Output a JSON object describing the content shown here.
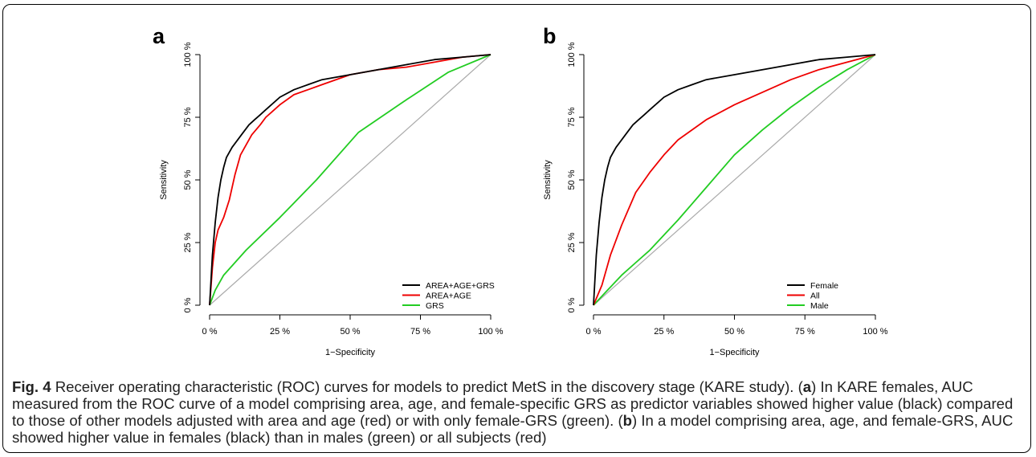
{
  "caption": {
    "figure_label": "Fig. 4",
    "text_1": " Receiver operating characteristic (ROC) curves for models to predict MetS in the discovery stage (KARE study). (",
    "a_ref": "a",
    "text_2": ") In KARE females, AUC measured from the ROC curve of a model comprising area, age, and female-specific GRS as predictor variables showed higher value (black) compared to those of other models adjusted with area and age (red) or with only female-GRS (green). (",
    "b_ref": "b",
    "text_3": ") In a model comprising area, age, and female-GRS, AUC showed higher value in females (black) than in males (green) or all subjects (red)"
  },
  "chart_data": [
    {
      "panel": "a",
      "type": "line",
      "xlabel": "1−Specificity",
      "ylabel": "Sensitivity",
      "xlim": [
        0,
        1
      ],
      "ylim": [
        0,
        1
      ],
      "x_ticks": [
        "0 %",
        "25 %",
        "50 %",
        "75 %",
        "100 %"
      ],
      "y_ticks": [
        "0 %",
        "25 %",
        "50 %",
        "75 %",
        "100 %"
      ],
      "legend_position": "bottom-right",
      "reference_line": {
        "color": "#aaaaaa",
        "from": [
          0,
          0
        ],
        "to": [
          1,
          1
        ]
      },
      "series": [
        {
          "name": "AREA+AGE+GRS",
          "color": "#000000",
          "x": [
            0,
            0.01,
            0.02,
            0.03,
            0.04,
            0.05,
            0.06,
            0.08,
            0.1,
            0.12,
            0.14,
            0.16,
            0.18,
            0.2,
            0.25,
            0.3,
            0.35,
            0.4,
            0.5,
            0.6,
            0.7,
            0.8,
            0.9,
            1.0
          ],
          "y": [
            0,
            0.2,
            0.33,
            0.43,
            0.5,
            0.55,
            0.59,
            0.63,
            0.66,
            0.69,
            0.72,
            0.74,
            0.76,
            0.78,
            0.83,
            0.86,
            0.88,
            0.9,
            0.92,
            0.94,
            0.96,
            0.98,
            0.99,
            1.0
          ]
        },
        {
          "name": "AREA+AGE",
          "color": "#ee0000",
          "x": [
            0,
            0.01,
            0.02,
            0.03,
            0.05,
            0.07,
            0.09,
            0.11,
            0.13,
            0.15,
            0.18,
            0.2,
            0.22,
            0.25,
            0.3,
            0.35,
            0.4,
            0.5,
            0.6,
            0.7,
            0.8,
            0.9,
            1.0
          ],
          "y": [
            0,
            0.15,
            0.25,
            0.3,
            0.35,
            0.42,
            0.52,
            0.6,
            0.64,
            0.68,
            0.72,
            0.75,
            0.77,
            0.8,
            0.84,
            0.86,
            0.88,
            0.92,
            0.94,
            0.95,
            0.97,
            0.99,
            1.0
          ]
        },
        {
          "name": "GRS",
          "color": "#22cc22",
          "x": [
            0,
            0.02,
            0.05,
            0.13,
            0.25,
            0.38,
            0.53,
            0.7,
            0.85,
            1.0
          ],
          "y": [
            0,
            0.06,
            0.12,
            0.22,
            0.35,
            0.5,
            0.69,
            0.82,
            0.93,
            1.0
          ]
        }
      ]
    },
    {
      "panel": "b",
      "type": "line",
      "xlabel": "1−Specificity",
      "ylabel": "Sensitivity",
      "xlim": [
        0,
        1
      ],
      "ylim": [
        0,
        1
      ],
      "x_ticks": [
        "0 %",
        "25 %",
        "50 %",
        "75 %",
        "100 %"
      ],
      "y_ticks": [
        "0 %",
        "25 %",
        "50 %",
        "75 %",
        "100 %"
      ],
      "legend_position": "bottom-right",
      "reference_line": {
        "color": "#aaaaaa",
        "from": [
          0,
          0
        ],
        "to": [
          1,
          1
        ]
      },
      "series": [
        {
          "name": "Female",
          "color": "#000000",
          "x": [
            0,
            0.01,
            0.02,
            0.03,
            0.04,
            0.05,
            0.06,
            0.08,
            0.1,
            0.12,
            0.14,
            0.16,
            0.18,
            0.2,
            0.25,
            0.3,
            0.35,
            0.4,
            0.5,
            0.6,
            0.7,
            0.8,
            0.9,
            1.0
          ],
          "y": [
            0,
            0.2,
            0.33,
            0.43,
            0.5,
            0.55,
            0.59,
            0.63,
            0.66,
            0.69,
            0.72,
            0.74,
            0.76,
            0.78,
            0.83,
            0.86,
            0.88,
            0.9,
            0.92,
            0.94,
            0.96,
            0.98,
            0.99,
            1.0
          ]
        },
        {
          "name": "All",
          "color": "#ee0000",
          "x": [
            0,
            0.03,
            0.06,
            0.1,
            0.15,
            0.2,
            0.25,
            0.3,
            0.4,
            0.5,
            0.6,
            0.7,
            0.8,
            0.9,
            1.0
          ],
          "y": [
            0,
            0.08,
            0.2,
            0.32,
            0.45,
            0.53,
            0.6,
            0.66,
            0.74,
            0.8,
            0.85,
            0.9,
            0.94,
            0.97,
            1.0
          ]
        },
        {
          "name": "Male",
          "color": "#22cc22",
          "x": [
            0,
            0.05,
            0.1,
            0.15,
            0.2,
            0.3,
            0.4,
            0.5,
            0.6,
            0.7,
            0.8,
            0.9,
            1.0
          ],
          "y": [
            0,
            0.06,
            0.12,
            0.17,
            0.22,
            0.34,
            0.47,
            0.6,
            0.7,
            0.79,
            0.87,
            0.94,
            1.0
          ]
        }
      ]
    }
  ]
}
